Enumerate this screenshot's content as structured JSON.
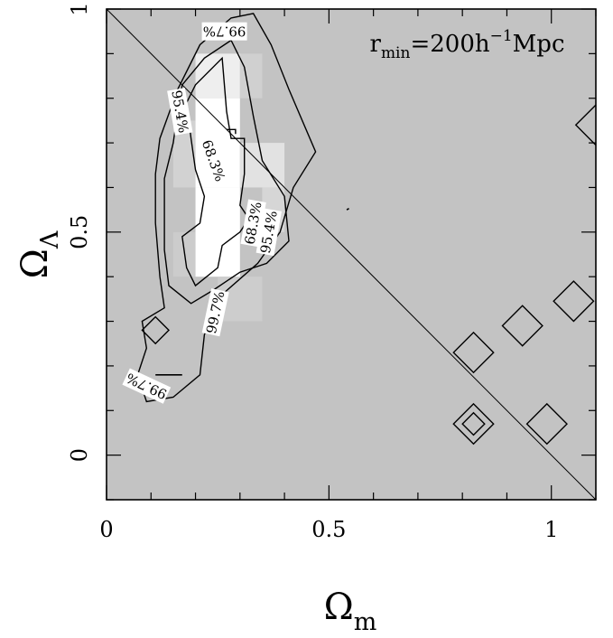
{
  "chart_data": {
    "type": "heatmap",
    "title": "",
    "xlabel": {
      "base": "Ω",
      "sub": "m"
    },
    "ylabel": {
      "base": "Ω",
      "sub": "Λ"
    },
    "xlim": [
      0,
      1.1
    ],
    "ylim": [
      -0.1,
      1.0
    ],
    "x_ticks": [
      {
        "value": 0,
        "label": "0"
      },
      {
        "value": 0.5,
        "label": "0.5"
      },
      {
        "value": 1,
        "label": "1"
      }
    ],
    "y_ticks": [
      {
        "value": 0,
        "label": "0"
      },
      {
        "value": 0.5,
        "label": "0.5"
      },
      {
        "value": 1,
        "label": "1"
      }
    ],
    "minor_tick_step": 0.1,
    "grid": false,
    "annotation": {
      "base": "r",
      "sub": "min",
      "eq": "=200h",
      "sup": "−1",
      "unit": "Mpc",
      "x": 1.03,
      "y": 0.905
    },
    "flat_universe_line": {
      "x": [
        0,
        1.1
      ],
      "y": [
        1.0,
        -0.1
      ]
    },
    "background_color": "#c3c3c3",
    "cells": [
      {
        "x": 0.2,
        "y": 0.8,
        "w": 0.1,
        "h": 0.1,
        "shade": "#eeeeee"
      },
      {
        "x": 0.2,
        "y": 0.6,
        "w": 0.1,
        "h": 0.2,
        "shade": "#ffffff"
      },
      {
        "x": 0.2,
        "y": 0.4,
        "w": 0.1,
        "h": 0.2,
        "shade": "#ffffff"
      },
      {
        "x": 0.3,
        "y": 0.6,
        "w": 0.1,
        "h": 0.1,
        "shade": "#e2e2e2"
      },
      {
        "x": 0.35,
        "y": 0.5,
        "w": 0.05,
        "h": 0.1,
        "shade": "#d6d6d6"
      },
      {
        "x": 0.15,
        "y": 0.6,
        "w": 0.05,
        "h": 0.15,
        "shade": "#d2d2d2"
      },
      {
        "x": 0.3,
        "y": 0.8,
        "w": 0.05,
        "h": 0.1,
        "shade": "#d0d0d0"
      },
      {
        "x": 0.25,
        "y": 0.3,
        "w": 0.1,
        "h": 0.1,
        "shade": "#cdcdcd"
      },
      {
        "x": 0.15,
        "y": 0.4,
        "w": 0.05,
        "h": 0.1,
        "shade": "#cccccc"
      }
    ],
    "contours": [
      {
        "name": "68.3%",
        "label": "68.3%",
        "points": [
          [
            0.26,
            0.89
          ],
          [
            0.27,
            0.77
          ],
          [
            0.28,
            0.71
          ],
          [
            0.31,
            0.71
          ],
          [
            0.31,
            0.63
          ],
          [
            0.3,
            0.56
          ],
          [
            0.32,
            0.53
          ],
          [
            0.3,
            0.5
          ],
          [
            0.26,
            0.47
          ],
          [
            0.25,
            0.42
          ],
          [
            0.2,
            0.38
          ],
          [
            0.18,
            0.42
          ],
          [
            0.17,
            0.49
          ],
          [
            0.21,
            0.52
          ],
          [
            0.22,
            0.58
          ],
          [
            0.2,
            0.64
          ],
          [
            0.19,
            0.71
          ],
          [
            0.18,
            0.79
          ],
          [
            0.2,
            0.83
          ]
        ],
        "label_at": {
          "x": 0.24,
          "y": 0.66,
          "angle": 70
        }
      },
      {
        "name": "68.3% inner",
        "label": "",
        "points": [
          [
            0.27,
            0.73
          ],
          [
            0.29,
            0.73
          ],
          [
            0.29,
            0.72
          ]
        ],
        "label_at": null
      },
      {
        "name": "95.4%",
        "label": "95.4%",
        "points": [
          [
            0.28,
            0.93
          ],
          [
            0.31,
            0.87
          ],
          [
            0.33,
            0.76
          ],
          [
            0.35,
            0.66
          ],
          [
            0.4,
            0.58
          ],
          [
            0.41,
            0.48
          ],
          [
            0.36,
            0.43
          ],
          [
            0.3,
            0.41
          ],
          [
            0.24,
            0.37
          ],
          [
            0.19,
            0.34
          ],
          [
            0.14,
            0.38
          ],
          [
            0.13,
            0.46
          ],
          [
            0.13,
            0.54
          ],
          [
            0.13,
            0.62
          ],
          [
            0.15,
            0.7
          ],
          [
            0.16,
            0.77
          ],
          [
            0.17,
            0.83
          ],
          [
            0.22,
            0.89
          ]
        ],
        "label_at": {
          "x": 0.165,
          "y": 0.77,
          "angle": 80
        }
      },
      {
        "name": "99.7%",
        "label": "99.7%",
        "points": [
          [
            0.33,
            0.99
          ],
          [
            0.37,
            0.92
          ],
          [
            0.41,
            0.82
          ],
          [
            0.47,
            0.68
          ],
          [
            0.42,
            0.6
          ],
          [
            0.39,
            0.5
          ],
          [
            0.34,
            0.43
          ],
          [
            0.26,
            0.36
          ],
          [
            0.22,
            0.27
          ],
          [
            0.21,
            0.18
          ],
          [
            0.15,
            0.13
          ],
          [
            0.09,
            0.12
          ],
          [
            0.07,
            0.18
          ],
          [
            0.09,
            0.24
          ],
          [
            0.08,
            0.3
          ],
          [
            0.13,
            0.33
          ],
          [
            0.12,
            0.4
          ],
          [
            0.11,
            0.52
          ],
          [
            0.11,
            0.63
          ],
          [
            0.12,
            0.71
          ],
          [
            0.16,
            0.82
          ],
          [
            0.21,
            0.92
          ],
          [
            0.28,
            0.98
          ]
        ],
        "label_at": {
          "x": 0.265,
          "y": 0.95,
          "angle": 180
        }
      },
      {
        "name": "99.7% island",
        "label": "",
        "points": [
          [
            0.11,
            0.31
          ],
          [
            0.14,
            0.28
          ],
          [
            0.11,
            0.25
          ],
          [
            0.08,
            0.28
          ]
        ],
        "label_at": null
      }
    ],
    "extra_labels": [
      {
        "text": "95.4%",
        "x": 0.365,
        "y": 0.5,
        "angle": -80
      },
      {
        "text": "68.3%",
        "x": 0.33,
        "y": 0.52,
        "angle": -80
      },
      {
        "text": "99.7%",
        "x": 0.245,
        "y": 0.32,
        "angle": -78
      },
      {
        "text": "99.7%",
        "x": 0.09,
        "y": 0.155,
        "angle": 205
      }
    ],
    "small_marks": [
      {
        "x1": 0.11,
        "y1": 0.18,
        "x2": 0.17,
        "y2": 0.18
      },
      {
        "x1": 0.54,
        "y1": 0.55,
        "x2": 0.545,
        "y2": 0.553
      }
    ],
    "diamonds": [
      {
        "x": 0.825,
        "y": 0.23,
        "r": 0.045
      },
      {
        "x": 0.825,
        "y": 0.07,
        "r": 0.045
      },
      {
        "x": 0.825,
        "y": 0.07,
        "r": 0.025
      },
      {
        "x": 0.935,
        "y": 0.29,
        "r": 0.045
      },
      {
        "x": 0.99,
        "y": 0.07,
        "r": 0.045
      },
      {
        "x": 1.05,
        "y": 0.345,
        "r": 0.045
      },
      {
        "x": 1.1,
        "y": 0.74,
        "r": 0.045
      }
    ]
  }
}
